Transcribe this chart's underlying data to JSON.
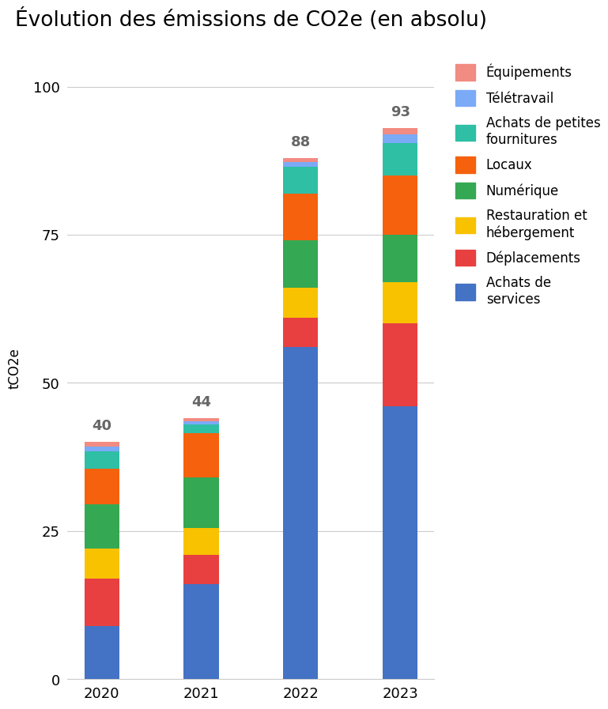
{
  "title": "Évolution des émissions de CO2e (en absolu)",
  "ylabel": "tCO2e",
  "years": [
    "2020",
    "2021",
    "2022",
    "2023"
  ],
  "totals": [
    40,
    44,
    88,
    93
  ],
  "categories": [
    "Achats de services",
    "Déplacements",
    "Restauration et hébergement",
    "Numérique",
    "Locaux",
    "Achats de petites fournitures",
    "Télétravail",
    "Équipements"
  ],
  "legend_labels": [
    "Équipements",
    "Télétravail",
    "Achats de petites\nfournitures",
    "Locaux",
    "Numérique",
    "Restauration et\nhébergement",
    "Déplacements",
    "Achats de\nservices"
  ],
  "colors": [
    "#4472C4",
    "#E84040",
    "#F8C200",
    "#34A853",
    "#F5610D",
    "#2EBFA5",
    "#7BAAF7",
    "#F28B82"
  ],
  "values": {
    "2020": [
      9.0,
      8.0,
      5.0,
      7.5,
      6.0,
      3.0,
      0.8,
      0.7
    ],
    "2021": [
      16.0,
      5.0,
      4.5,
      8.5,
      7.5,
      1.5,
      0.5,
      0.5
    ],
    "2022": [
      56.0,
      5.0,
      5.0,
      8.0,
      8.0,
      4.5,
      0.8,
      0.7
    ],
    "2023": [
      46.0,
      14.0,
      7.0,
      8.0,
      10.0,
      5.5,
      1.5,
      1.0
    ]
  },
  "ylim": [
    0,
    105
  ],
  "yticks": [
    0,
    25,
    50,
    75,
    100
  ],
  "background_color": "#ffffff",
  "bar_width": 0.35,
  "title_fontsize": 19,
  "label_fontsize": 12,
  "tick_fontsize": 13,
  "total_label_fontsize": 13,
  "legend_fontsize": 12
}
